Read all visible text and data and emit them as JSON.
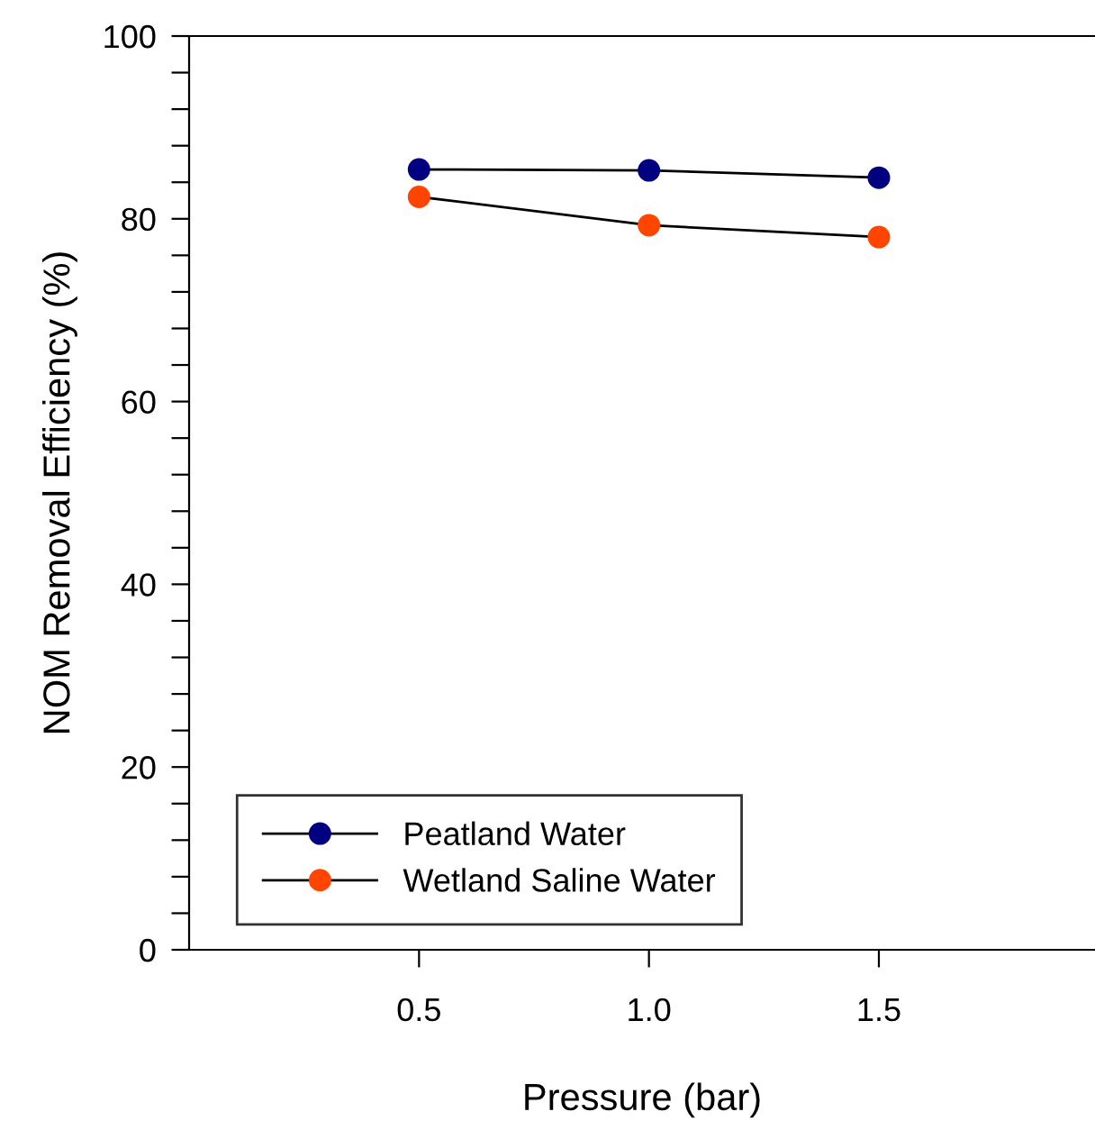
{
  "chart_data": {
    "type": "line",
    "xlabel": "Pressure (bar)",
    "ylabel": "NOM Removal Efficiency (%)",
    "x": [
      0.5,
      1.0,
      1.5
    ],
    "series": [
      {
        "name": "Peatland Water",
        "color": "#000080",
        "values": [
          85.4,
          85.3,
          84.5
        ]
      },
      {
        "name": "Wetland Saline Water",
        "color": "#ff4500",
        "values": [
          82.4,
          79.3,
          78.0
        ]
      }
    ],
    "xlim": [
      0,
      1.97
    ],
    "xticks": [
      {
        "value": 0.5,
        "label": "0.5"
      },
      {
        "value": 1.0,
        "label": "1.0"
      },
      {
        "value": 1.5,
        "label": "1.5"
      }
    ],
    "ylim": [
      0,
      100
    ],
    "yticks": [
      0,
      {
        "value": 4,
        "label": null
      },
      {
        "value": 8,
        "label": null
      },
      {
        "value": 12,
        "label": null
      },
      {
        "value": 16,
        "label": null
      },
      20,
      {
        "value": 24,
        "label": null
      },
      {
        "value": 28,
        "label": null
      },
      {
        "value": 32,
        "label": null
      },
      {
        "value": 36,
        "label": null
      },
      40,
      {
        "value": 44,
        "label": null
      },
      {
        "value": 48,
        "label": null
      },
      {
        "value": 52,
        "label": null
      },
      {
        "value": 56,
        "label": null
      },
      60,
      {
        "value": 64,
        "label": null
      },
      {
        "value": 68,
        "label": null
      },
      {
        "value": 72,
        "label": null
      },
      {
        "value": 76,
        "label": null
      },
      80,
      {
        "value": 84,
        "label": null
      },
      {
        "value": 88,
        "label": null
      },
      {
        "value": 92,
        "label": null
      },
      {
        "value": 96,
        "label": null
      },
      100
    ],
    "grid": false,
    "legend": "bottom left",
    "marker": "circle",
    "line_style": "solid"
  }
}
